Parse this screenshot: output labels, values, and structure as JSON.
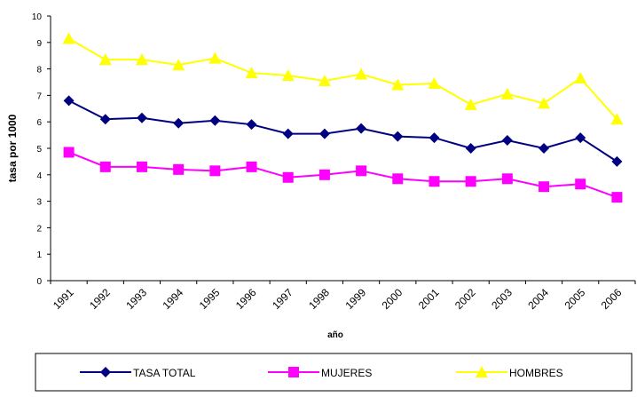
{
  "chart_data": {
    "type": "line",
    "y_label": "tasa por 1000",
    "x_label": "año",
    "categories": [
      "1991",
      "1992",
      "1993",
      "1994",
      "1995",
      "1996",
      "1997",
      "1998",
      "1999",
      "2000",
      "2001",
      "2002",
      "2003",
      "2004",
      "2005",
      "2006"
    ],
    "series": [
      {
        "name": "TASA TOTAL",
        "color": "#000080",
        "marker": "diamond",
        "values": [
          6.8,
          6.1,
          6.15,
          5.95,
          6.05,
          5.9,
          5.55,
          5.55,
          5.75,
          5.45,
          5.4,
          5.0,
          5.3,
          5.0,
          5.4,
          4.5
        ]
      },
      {
        "name": "MUJERES",
        "color": "#ff00ff",
        "marker": "square",
        "values": [
          4.85,
          4.3,
          4.3,
          4.2,
          4.15,
          4.3,
          3.9,
          4.0,
          4.15,
          3.85,
          3.75,
          3.75,
          3.85,
          3.55,
          3.65,
          3.15
        ]
      },
      {
        "name": "HOMBRES",
        "color": "#ffff00",
        "marker": "triangle",
        "values": [
          9.15,
          8.35,
          8.35,
          8.15,
          8.4,
          7.85,
          7.75,
          7.55,
          7.8,
          7.4,
          7.45,
          6.65,
          7.05,
          6.7,
          7.65,
          6.1
        ]
      }
    ],
    "ylim": [
      0,
      10
    ],
    "yticks": [
      0,
      1,
      2,
      3,
      4,
      5,
      6,
      7,
      8,
      9,
      10
    ],
    "grid": false,
    "legend": "bottom"
  }
}
